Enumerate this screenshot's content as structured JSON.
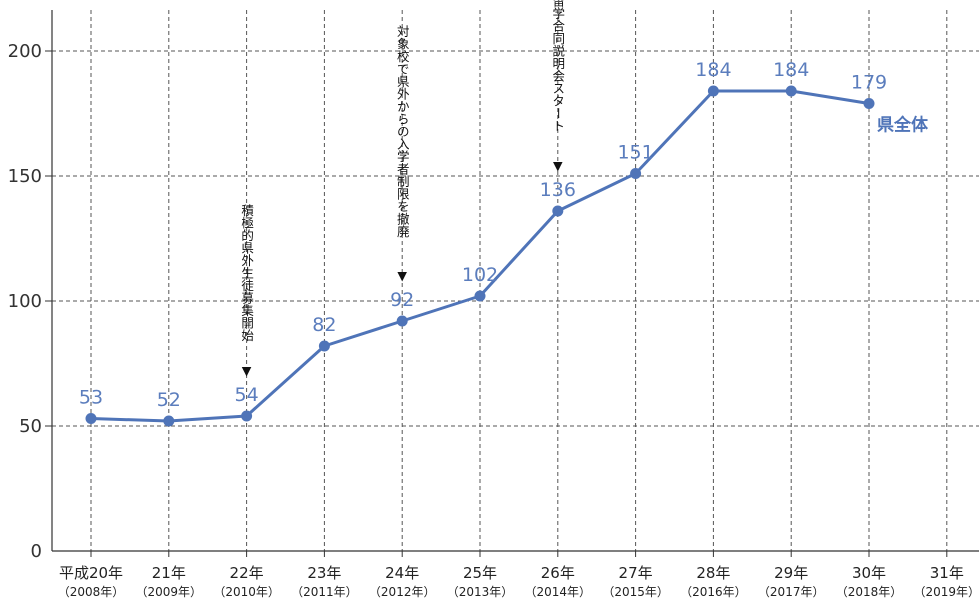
{
  "chart_data": {
    "type": "line",
    "categories": [
      {
        "main": "平成20年",
        "sub": "（2008年）"
      },
      {
        "main": "21年",
        "sub": "（2009年）"
      },
      {
        "main": "22年",
        "sub": "（2010年）"
      },
      {
        "main": "23年",
        "sub": "（2011年）"
      },
      {
        "main": "24年",
        "sub": "（2012年）"
      },
      {
        "main": "25年",
        "sub": "（2013年）"
      },
      {
        "main": "26年",
        "sub": "（2014年）"
      },
      {
        "main": "27年",
        "sub": "（2015年）"
      },
      {
        "main": "28年",
        "sub": "（2016年）"
      },
      {
        "main": "29年",
        "sub": "（2017年）"
      },
      {
        "main": "30年",
        "sub": "（2018年）"
      },
      {
        "main": "31年",
        "sub": "（2019年）"
      }
    ],
    "series": [
      {
        "name": "県全体",
        "values": [
          53,
          52,
          54,
          82,
          92,
          102,
          136,
          151,
          184,
          184,
          179,
          null
        ],
        "color": "#4f74b8"
      }
    ],
    "ylim": [
      0,
      215
    ],
    "yticks": [
      0,
      50,
      100,
      150,
      200
    ],
    "grid": true,
    "annotations": [
      {
        "category_index": 2,
        "text": "積極的県外生徒募集開始",
        "marker": "▼"
      },
      {
        "category_index": 4,
        "text": "対象校で県外からの入学者制限を撤廃",
        "marker": "▼"
      },
      {
        "category_index": 6,
        "text": "しまね留学合同説明会スタート",
        "marker": "▼"
      }
    ],
    "title": "",
    "xlabel": "",
    "ylabel": ""
  }
}
